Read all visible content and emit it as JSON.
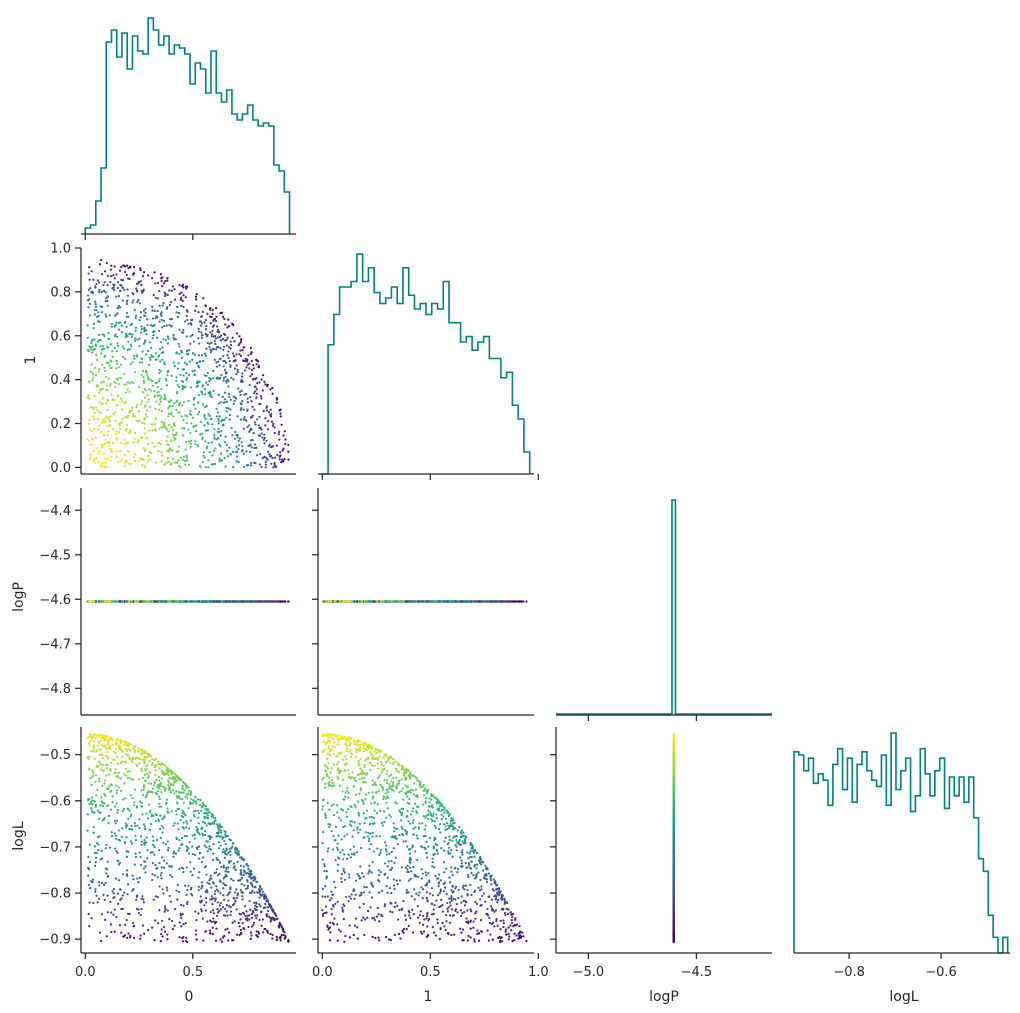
{
  "chart_data": {
    "type": "corner",
    "variables": [
      "0",
      "1",
      "logP",
      "logL"
    ],
    "colors": {
      "histogram": "#008080",
      "axis": "#262626",
      "colormap": "viridis"
    },
    "histograms": {
      "0": {
        "range": [
          0.0,
          0.95
        ],
        "counts": [
          2,
          3,
          11,
          22,
          64,
          68,
          59,
          67,
          55,
          66,
          61,
          60,
          72,
          68,
          63,
          66,
          60,
          63,
          62,
          60,
          50,
          57,
          55,
          47,
          61,
          47,
          44,
          48,
          40,
          38,
          40,
          43,
          38,
          36,
          37,
          36,
          23,
          21,
          14
        ]
      },
      "1": {
        "range": [
          0.0,
          0.96
        ],
        "counts": [
          0,
          47,
          58,
          68,
          68,
          70,
          80,
          70,
          75,
          66,
          62,
          64,
          68,
          62,
          75,
          65,
          60,
          62,
          58,
          62,
          60,
          70,
          55,
          55,
          48,
          50,
          45,
          48,
          50,
          42,
          42,
          35,
          37,
          25,
          20,
          8
        ]
      },
      "logP": {
        "range": [
          -5.15,
          -4.15
        ],
        "spike_at": -4.605
      },
      "logL": {
        "range": [
          -0.92,
          -0.455
        ],
        "counts": [
          64,
          63,
          58,
          62,
          54,
          57,
          55,
          47,
          60,
          65,
          52,
          62,
          48,
          60,
          64,
          58,
          55,
          53,
          63,
          47,
          70,
          52,
          58,
          62,
          45,
          50,
          65,
          57,
          50,
          58,
          62,
          46,
          56,
          50,
          56,
          48,
          56,
          43,
          30,
          26,
          12,
          5,
          0,
          5
        ]
      }
    },
    "panels": [
      {
        "row": "0",
        "type": "histogram",
        "var": "0",
        "xlim": [
          -0.02,
          0.98
        ],
        "xticks": [
          0.0,
          0.5
        ],
        "tick_labels_shown": false
      },
      {
        "row": "1",
        "col": "0",
        "type": "scatter",
        "xlim": [
          -0.02,
          0.98
        ],
        "ylim": [
          -0.03,
          1.0
        ],
        "yticks": [
          0.0,
          0.2,
          0.4,
          0.6,
          0.8,
          1.0
        ]
      },
      {
        "row": "1",
        "type": "histogram",
        "var": "1",
        "xlim": [
          -0.02,
          0.98
        ],
        "xticks": [
          0.0,
          0.5,
          1.0
        ],
        "tick_labels_shown": false
      },
      {
        "row": "logP",
        "col": "0",
        "type": "scatter",
        "xlim": [
          -0.02,
          0.98
        ],
        "ylim": [
          -4.86,
          -4.35
        ],
        "yticks": [
          -4.8,
          -4.7,
          -4.6,
          -4.5,
          -4.4
        ]
      },
      {
        "row": "logP",
        "col": "1",
        "type": "scatter",
        "xlim": [
          -0.02,
          0.98
        ],
        "ylim": [
          -4.86,
          -4.35
        ]
      },
      {
        "row": "logP",
        "type": "histogram",
        "var": "logP",
        "xlim": [
          -5.15,
          -4.15
        ],
        "xticks": [
          -5.0,
          -4.5
        ],
        "tick_labels_shown": false
      },
      {
        "row": "logL",
        "col": "0",
        "type": "scatter",
        "xlim": [
          -0.02,
          0.98
        ],
        "ylim": [
          -0.93,
          -0.44
        ],
        "xticks": [
          0.0,
          0.5
        ],
        "yticks": [
          -0.9,
          -0.8,
          -0.7,
          -0.6,
          -0.5
        ]
      },
      {
        "row": "logL",
        "col": "1",
        "type": "scatter",
        "xlim": [
          -0.02,
          0.98
        ],
        "ylim": [
          -0.93,
          -0.44
        ],
        "xticks": [
          0.0,
          0.5,
          1.0
        ]
      },
      {
        "row": "logL",
        "col": "logP",
        "type": "scatter",
        "xlim": [
          -5.15,
          -4.15
        ],
        "ylim": [
          -0.93,
          -0.44
        ],
        "xticks": [
          -5.0,
          -4.5
        ]
      },
      {
        "row": "logL",
        "type": "histogram",
        "var": "logL",
        "xlim": [
          -0.92,
          -0.45
        ],
        "xticks": [
          -0.8,
          -0.6
        ]
      }
    ],
    "tick_labels": {
      "x0": [
        "0.0",
        "0.5"
      ],
      "x1": [
        "0.0",
        "0.5",
        "1.0"
      ],
      "xlogP": [
        "−5.0",
        "−4.5"
      ],
      "xlogL": [
        "−0.8",
        "−0.6"
      ],
      "y1": [
        "0.0",
        "0.2",
        "0.4",
        "0.6",
        "0.8",
        "1.0"
      ],
      "ylogP": [
        "−4.8",
        "−4.7",
        "−4.6",
        "−4.5",
        "−4.4"
      ],
      "ylogL": [
        "−0.9",
        "−0.8",
        "−0.7",
        "−0.6",
        "−0.5"
      ]
    },
    "axis_labels": {
      "x": [
        "0",
        "1",
        "logP",
        "logL"
      ],
      "y": [
        "1",
        "logP",
        "logL"
      ]
    },
    "scatter_samples": {
      "relation": "logL = -0.455 - 0.5 * (x0^2 + x1^2), logP constant at -4.605, points inside quarter disk x0^2 + x1^2 <= 0.95^2",
      "count": 1500,
      "extra_points": [
        [
          0.02,
          0.04
        ],
        [
          0.04,
          0.03
        ],
        [
          0.03,
          0.13
        ],
        [
          0.09,
          0.04
        ],
        [
          0.1,
          0.0
        ]
      ]
    }
  }
}
